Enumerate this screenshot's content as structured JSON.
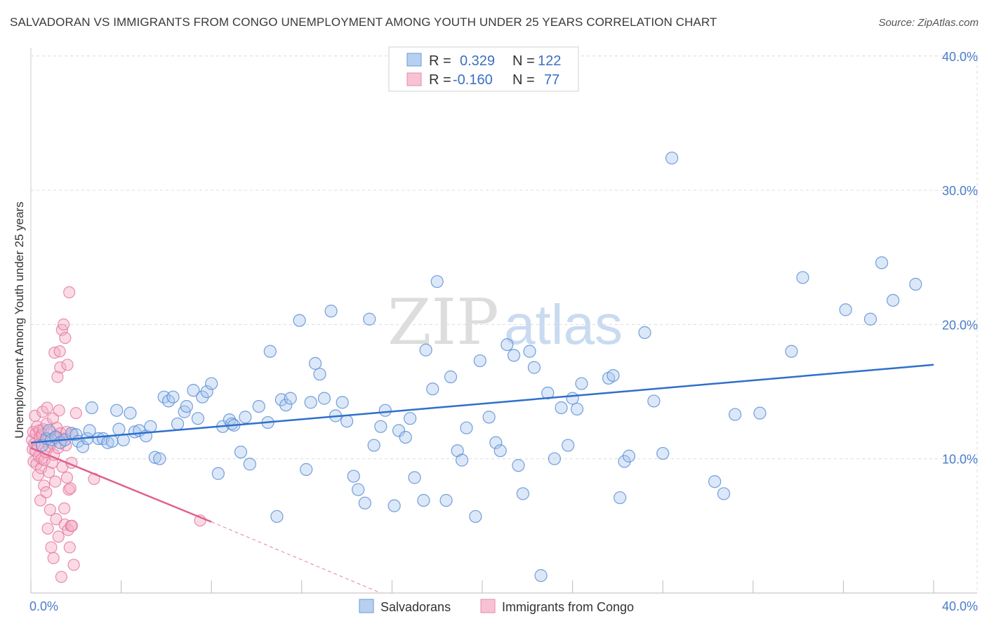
{
  "title": "SALVADORAN VS IMMIGRANTS FROM CONGO UNEMPLOYMENT AMONG YOUTH UNDER 25 YEARS CORRELATION CHART",
  "source": "Source: ZipAtlas.com",
  "watermark": {
    "zip": "ZIP",
    "atlas": "atlas"
  },
  "colors": {
    "blue_fill": "#a8c6ee",
    "blue_stroke": "#5b8fd6",
    "blue_line": "#2f6fcc",
    "pink_fill": "#f5b0c6",
    "pink_stroke": "#e57aa0",
    "pink_line": "#e0608f",
    "accent_text": "#3a6fc4",
    "grid": "#dcdcdc"
  },
  "legend": {
    "items": [
      {
        "r_label": "R =",
        "r_value": "0.329",
        "n_label": "N =",
        "n_value": "122"
      },
      {
        "r_label": "R =",
        "r_value": "-0.160",
        "n_label": "N =",
        "n_value": "77"
      }
    ]
  },
  "chart_data": {
    "type": "scatter",
    "xlabel": "",
    "ylabel": "Unemployment Among Youth under 25 years",
    "xlim": [
      0,
      40
    ],
    "ylim": [
      0,
      40
    ],
    "x_tick_labels": [
      "0.0%",
      "40.0%"
    ],
    "y_ticks": [
      10,
      20,
      30,
      40
    ],
    "y_tick_labels": [
      "10.0%",
      "20.0%",
      "30.0%",
      "40.0%"
    ],
    "series": [
      {
        "name": "Salvadorans",
        "trend": {
          "x": [
            0,
            40
          ],
          "y": [
            11.2,
            17.0
          ]
        },
        "points": [
          [
            0.5,
            11.0
          ],
          [
            0.7,
            11.5
          ],
          [
            0.8,
            12.1
          ],
          [
            0.9,
            11.4
          ],
          [
            1.1,
            11.6
          ],
          [
            1.3,
            11.2
          ],
          [
            1.5,
            11.4
          ],
          [
            1.8,
            11.9
          ],
          [
            2.0,
            11.8
          ],
          [
            2.1,
            11.3
          ],
          [
            2.3,
            10.9
          ],
          [
            2.5,
            11.5
          ],
          [
            2.6,
            12.1
          ],
          [
            2.7,
            13.8
          ],
          [
            3.0,
            11.5
          ],
          [
            3.2,
            11.5
          ],
          [
            3.4,
            11.2
          ],
          [
            3.6,
            11.3
          ],
          [
            3.8,
            13.6
          ],
          [
            3.9,
            12.2
          ],
          [
            4.1,
            11.4
          ],
          [
            4.4,
            13.4
          ],
          [
            4.6,
            12.0
          ],
          [
            4.8,
            12.1
          ],
          [
            5.1,
            11.7
          ],
          [
            5.3,
            12.4
          ],
          [
            5.5,
            10.1
          ],
          [
            5.7,
            10.0
          ],
          [
            5.9,
            14.6
          ],
          [
            6.1,
            14.3
          ],
          [
            6.3,
            14.6
          ],
          [
            6.5,
            12.6
          ],
          [
            6.8,
            13.5
          ],
          [
            6.9,
            13.9
          ],
          [
            7.2,
            15.1
          ],
          [
            7.4,
            13.0
          ],
          [
            7.6,
            14.6
          ],
          [
            7.8,
            15.0
          ],
          [
            8.0,
            15.6
          ],
          [
            8.3,
            8.9
          ],
          [
            8.5,
            12.4
          ],
          [
            8.8,
            12.9
          ],
          [
            8.9,
            12.6
          ],
          [
            9.0,
            12.5
          ],
          [
            9.3,
            10.5
          ],
          [
            9.5,
            13.1
          ],
          [
            9.7,
            9.6
          ],
          [
            10.1,
            13.9
          ],
          [
            10.5,
            12.7
          ],
          [
            10.6,
            18.0
          ],
          [
            10.9,
            5.7
          ],
          [
            11.1,
            14.4
          ],
          [
            11.3,
            14.0
          ],
          [
            11.5,
            14.5
          ],
          [
            11.9,
            20.3
          ],
          [
            12.2,
            9.2
          ],
          [
            12.4,
            14.2
          ],
          [
            12.6,
            17.1
          ],
          [
            12.8,
            16.3
          ],
          [
            13.0,
            14.5
          ],
          [
            13.3,
            21.0
          ],
          [
            13.5,
            13.2
          ],
          [
            13.8,
            14.2
          ],
          [
            14.0,
            12.8
          ],
          [
            14.3,
            8.7
          ],
          [
            14.5,
            7.7
          ],
          [
            14.8,
            6.7
          ],
          [
            15.0,
            20.4
          ],
          [
            15.2,
            11.0
          ],
          [
            15.5,
            12.4
          ],
          [
            15.7,
            13.6
          ],
          [
            16.1,
            6.5
          ],
          [
            16.3,
            12.1
          ],
          [
            16.6,
            11.6
          ],
          [
            16.8,
            13.0
          ],
          [
            17.0,
            8.6
          ],
          [
            17.4,
            6.9
          ],
          [
            17.5,
            18.1
          ],
          [
            17.8,
            15.2
          ],
          [
            18.0,
            23.2
          ],
          [
            18.4,
            6.9
          ],
          [
            18.6,
            16.1
          ],
          [
            18.9,
            10.6
          ],
          [
            19.1,
            9.9
          ],
          [
            19.3,
            12.3
          ],
          [
            19.7,
            5.7
          ],
          [
            19.9,
            17.3
          ],
          [
            20.3,
            13.1
          ],
          [
            20.6,
            11.2
          ],
          [
            20.8,
            10.6
          ],
          [
            21.1,
            18.5
          ],
          [
            21.4,
            17.7
          ],
          [
            21.6,
            9.5
          ],
          [
            21.8,
            7.4
          ],
          [
            22.1,
            18.0
          ],
          [
            22.3,
            16.8
          ],
          [
            22.6,
            1.3
          ],
          [
            22.9,
            14.9
          ],
          [
            23.2,
            10.0
          ],
          [
            23.5,
            13.8
          ],
          [
            23.8,
            11.0
          ],
          [
            24.0,
            14.5
          ],
          [
            24.2,
            13.7
          ],
          [
            24.4,
            15.6
          ],
          [
            25.6,
            16.0
          ],
          [
            25.8,
            16.2
          ],
          [
            26.1,
            7.1
          ],
          [
            26.3,
            9.8
          ],
          [
            26.5,
            10.2
          ],
          [
            27.2,
            19.4
          ],
          [
            27.6,
            14.3
          ],
          [
            28.0,
            10.4
          ],
          [
            28.4,
            32.4
          ],
          [
            30.3,
            8.3
          ],
          [
            30.7,
            7.4
          ],
          [
            31.2,
            13.3
          ],
          [
            32.3,
            13.4
          ],
          [
            33.7,
            18.0
          ],
          [
            34.2,
            23.5
          ],
          [
            36.1,
            21.1
          ],
          [
            37.2,
            20.4
          ],
          [
            37.7,
            24.6
          ],
          [
            38.2,
            21.8
          ],
          [
            39.2,
            23.0
          ]
        ]
      },
      {
        "name": "Immigrants from Congo",
        "trend": {
          "x": [
            0,
            8.0
          ],
          "y": [
            10.8,
            5.3
          ]
        },
        "trend_dashed": {
          "x": [
            8.0,
            15.5
          ],
          "y": [
            5.3,
            0.0
          ]
        },
        "points": [
          [
            0.05,
            11.4
          ],
          [
            0.08,
            10.7
          ],
          [
            0.1,
            12.0
          ],
          [
            0.12,
            9.8
          ],
          [
            0.15,
            11.1
          ],
          [
            0.18,
            13.2
          ],
          [
            0.2,
            10.6
          ],
          [
            0.22,
            11.9
          ],
          [
            0.25,
            9.6
          ],
          [
            0.28,
            12.4
          ],
          [
            0.3,
            11.0
          ],
          [
            0.32,
            8.8
          ],
          [
            0.35,
            10.2
          ],
          [
            0.38,
            12.1
          ],
          [
            0.4,
            11.6
          ],
          [
            0.42,
            6.9
          ],
          [
            0.45,
            9.3
          ],
          [
            0.48,
            10.0
          ],
          [
            0.5,
            11.8
          ],
          [
            0.52,
            13.5
          ],
          [
            0.55,
            12.2
          ],
          [
            0.58,
            8.0
          ],
          [
            0.6,
            9.9
          ],
          [
            0.62,
            11.3
          ],
          [
            0.65,
            10.5
          ],
          [
            0.68,
            7.5
          ],
          [
            0.7,
            12.6
          ],
          [
            0.72,
            13.8
          ],
          [
            0.75,
            4.8
          ],
          [
            0.78,
            11.5
          ],
          [
            0.8,
            9.0
          ],
          [
            0.82,
            10.9
          ],
          [
            0.85,
            6.2
          ],
          [
            0.88,
            12.0
          ],
          [
            0.9,
            3.4
          ],
          [
            0.92,
            11.2
          ],
          [
            0.95,
            9.7
          ],
          [
            0.98,
            13.0
          ],
          [
            1.0,
            2.6
          ],
          [
            1.02,
            10.3
          ],
          [
            1.05,
            17.9
          ],
          [
            1.08,
            8.3
          ],
          [
            1.1,
            11.7
          ],
          [
            1.12,
            5.5
          ],
          [
            1.15,
            12.3
          ],
          [
            1.18,
            16.1
          ],
          [
            1.2,
            10.8
          ],
          [
            1.22,
            4.2
          ],
          [
            1.25,
            13.6
          ],
          [
            1.28,
            18.0
          ],
          [
            1.3,
            16.8
          ],
          [
            1.32,
            11.9
          ],
          [
            1.35,
            1.2
          ],
          [
            1.38,
            19.6
          ],
          [
            1.4,
            9.4
          ],
          [
            1.42,
            11.5
          ],
          [
            1.45,
            20.0
          ],
          [
            1.48,
            6.3
          ],
          [
            1.5,
            5.1
          ],
          [
            1.52,
            19.0
          ],
          [
            1.55,
            11.0
          ],
          [
            1.58,
            12.0
          ],
          [
            1.6,
            8.6
          ],
          [
            1.62,
            17.0
          ],
          [
            1.65,
            4.7
          ],
          [
            1.68,
            7.7
          ],
          [
            1.7,
            22.4
          ],
          [
            1.72,
            3.4
          ],
          [
            1.75,
            7.8
          ],
          [
            1.78,
            5.0
          ],
          [
            1.8,
            9.7
          ],
          [
            1.82,
            5.0
          ],
          [
            1.85,
            11.8
          ],
          [
            1.9,
            2.1
          ],
          [
            2.0,
            13.4
          ],
          [
            2.8,
            8.5
          ],
          [
            7.5,
            5.4
          ]
        ]
      }
    ]
  },
  "bottom_legend": {
    "items": [
      {
        "label": "Salvadorans"
      },
      {
        "label": "Immigrants from Congo"
      }
    ]
  }
}
